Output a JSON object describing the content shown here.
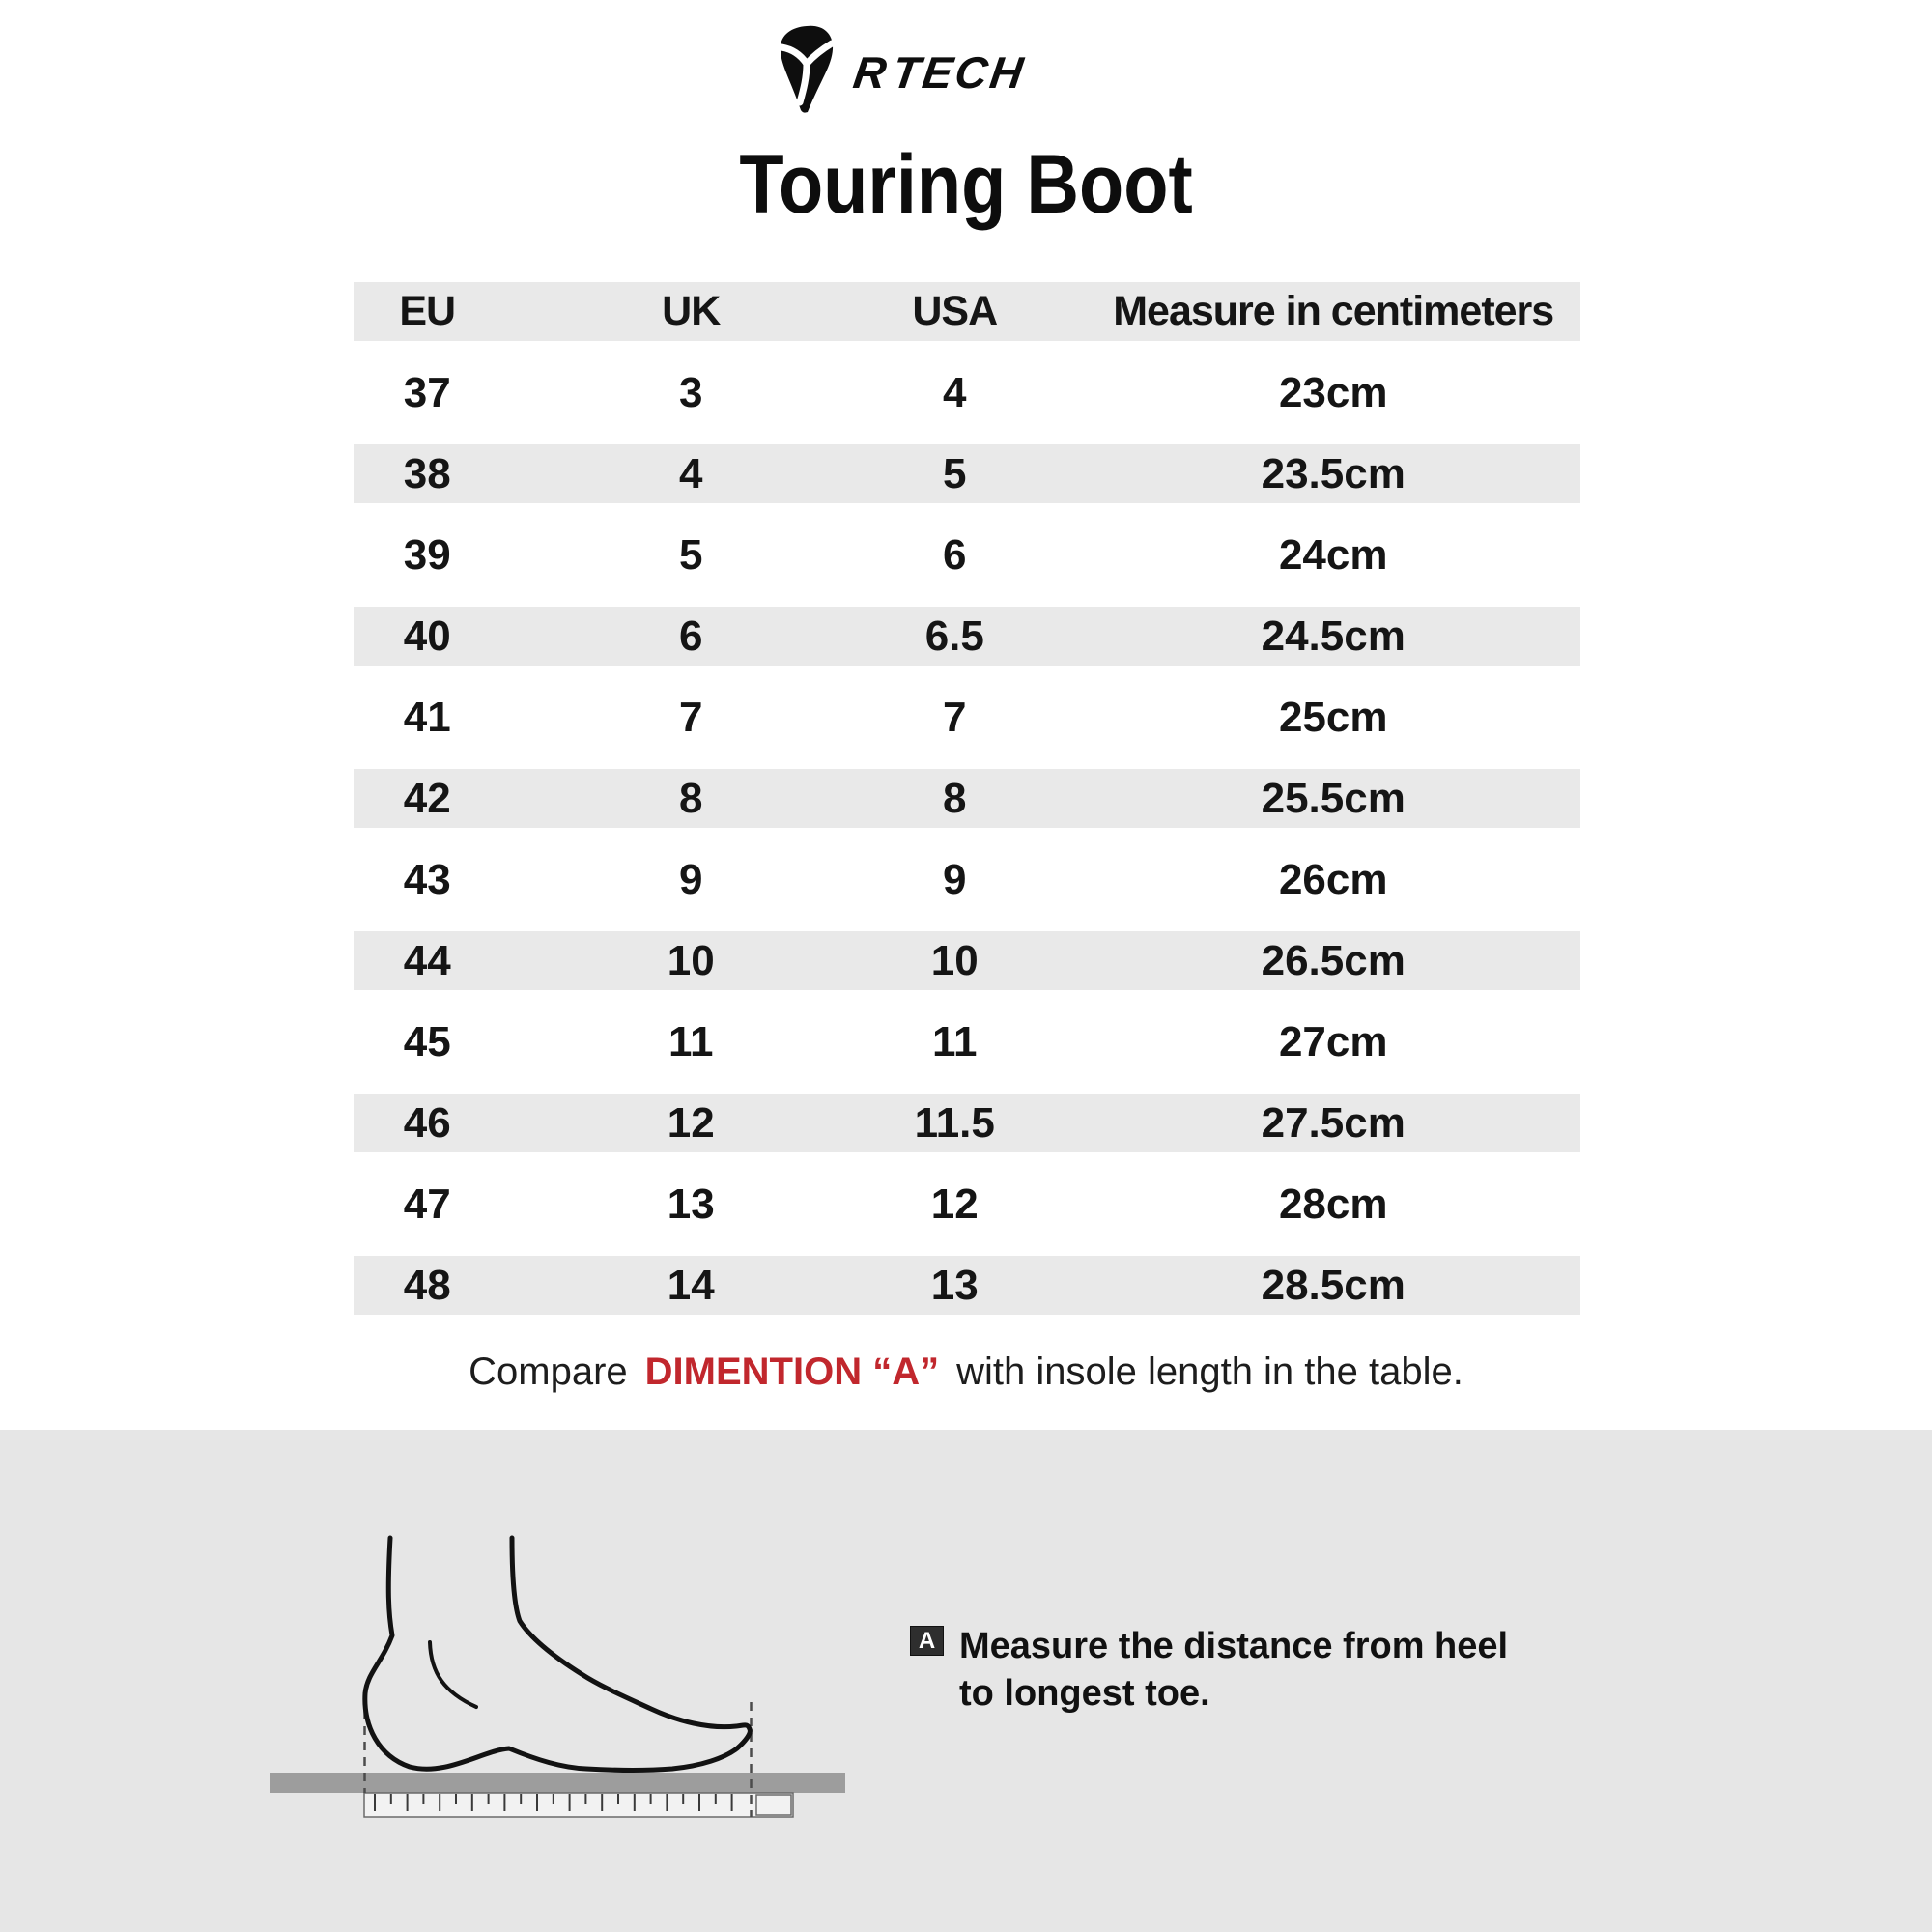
{
  "brand": {
    "r": "R",
    "tech": "TECH"
  },
  "title": "Touring Boot",
  "table": {
    "headers": [
      "EU",
      "UK",
      "USA",
      "Measure in centimeters"
    ],
    "rows": [
      [
        "37",
        "3",
        "4",
        "23cm"
      ],
      [
        "38",
        "4",
        "5",
        "23.5cm"
      ],
      [
        "39",
        "5",
        "6",
        "24cm"
      ],
      [
        "40",
        "6",
        "6.5",
        "24.5cm"
      ],
      [
        "41",
        "7",
        "7",
        "25cm"
      ],
      [
        "42",
        "8",
        "8",
        "25.5cm"
      ],
      [
        "43",
        "9",
        "9",
        "26cm"
      ],
      [
        "44",
        "10",
        "10",
        "26.5cm"
      ],
      [
        "45",
        "11",
        "11",
        "27cm"
      ],
      [
        "46",
        "12",
        "11.5",
        "27.5cm"
      ],
      [
        "47",
        "13",
        "12",
        "28cm"
      ],
      [
        "48",
        "14",
        "13",
        "28.5cm"
      ]
    ]
  },
  "caption": {
    "prefix": "Compare",
    "highlight": "DIMENTION “A”",
    "suffix": "with insole length in the table."
  },
  "note": {
    "badge": "A",
    "line1": "Measure the distance from heel",
    "line2": "to longest toe."
  },
  "colors": {
    "stripe": "#e9e9e9",
    "panel": "#e6e6e6",
    "accent_red": "#c1272d",
    "ground_bar": "#9d9d9d"
  }
}
